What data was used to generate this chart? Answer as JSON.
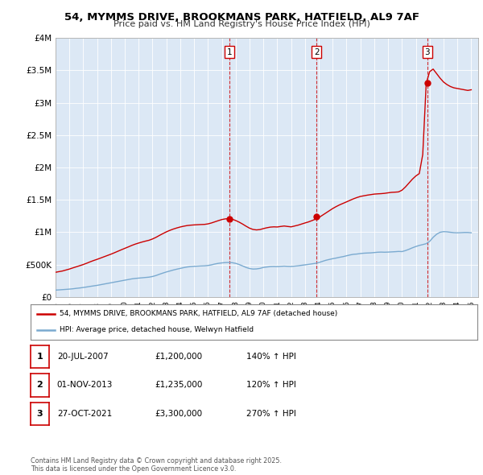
{
  "title": "54, MYMMS DRIVE, BROOKMANS PARK, HATFIELD, AL9 7AF",
  "subtitle": "Price paid vs. HM Land Registry's House Price Index (HPI)",
  "ylim": [
    0,
    4000000
  ],
  "xlim_start": 1995.0,
  "xlim_end": 2025.5,
  "yticks": [
    0,
    500000,
    1000000,
    1500000,
    2000000,
    2500000,
    3000000,
    3500000,
    4000000
  ],
  "ytick_labels": [
    "£0",
    "£500K",
    "£1M",
    "£1.5M",
    "£2M",
    "£2.5M",
    "£3M",
    "£3.5M",
    "£4M"
  ],
  "xticks": [
    1995,
    1996,
    1997,
    1998,
    1999,
    2000,
    2001,
    2002,
    2003,
    2004,
    2005,
    2006,
    2007,
    2008,
    2009,
    2010,
    2011,
    2012,
    2013,
    2014,
    2015,
    2016,
    2017,
    2018,
    2019,
    2020,
    2021,
    2022,
    2023,
    2024,
    2025
  ],
  "sale_dates": [
    2007.55,
    2013.84,
    2021.82
  ],
  "sale_prices": [
    1200000,
    1235000,
    3300000
  ],
  "sale_labels": [
    "1",
    "2",
    "3"
  ],
  "hpi_color": "#7aaad0",
  "price_color": "#cc0000",
  "legend_label_price": "54, MYMMS DRIVE, BROOKMANS PARK, HATFIELD, AL9 7AF (detached house)",
  "legend_label_hpi": "HPI: Average price, detached house, Welwyn Hatfield",
  "table_data": [
    [
      "1",
      "20-JUL-2007",
      "£1,200,000",
      "140% ↑ HPI"
    ],
    [
      "2",
      "01-NOV-2013",
      "£1,235,000",
      "120% ↑ HPI"
    ],
    [
      "3",
      "27-OCT-2021",
      "£3,300,000",
      "270% ↑ HPI"
    ]
  ],
  "footer": "Contains HM Land Registry data © Crown copyright and database right 2025.\nThis data is licensed under the Open Government Licence v3.0.",
  "hpi_data_x": [
    1995.0,
    1995.25,
    1995.5,
    1995.75,
    1996.0,
    1996.25,
    1996.5,
    1996.75,
    1997.0,
    1997.25,
    1997.5,
    1997.75,
    1998.0,
    1998.25,
    1998.5,
    1998.75,
    1999.0,
    1999.25,
    1999.5,
    1999.75,
    2000.0,
    2000.25,
    2000.5,
    2000.75,
    2001.0,
    2001.25,
    2001.5,
    2001.75,
    2002.0,
    2002.25,
    2002.5,
    2002.75,
    2003.0,
    2003.25,
    2003.5,
    2003.75,
    2004.0,
    2004.25,
    2004.5,
    2004.75,
    2005.0,
    2005.25,
    2005.5,
    2005.75,
    2006.0,
    2006.25,
    2006.5,
    2006.75,
    2007.0,
    2007.25,
    2007.5,
    2007.75,
    2008.0,
    2008.25,
    2008.5,
    2008.75,
    2009.0,
    2009.25,
    2009.5,
    2009.75,
    2010.0,
    2010.25,
    2010.5,
    2010.75,
    2011.0,
    2011.25,
    2011.5,
    2011.75,
    2012.0,
    2012.25,
    2012.5,
    2012.75,
    2013.0,
    2013.25,
    2013.5,
    2013.75,
    2014.0,
    2014.25,
    2014.5,
    2014.75,
    2015.0,
    2015.25,
    2015.5,
    2015.75,
    2016.0,
    2016.25,
    2016.5,
    2016.75,
    2017.0,
    2017.25,
    2017.5,
    2017.75,
    2018.0,
    2018.25,
    2018.5,
    2018.75,
    2019.0,
    2019.25,
    2019.5,
    2019.75,
    2020.0,
    2020.25,
    2020.5,
    2020.75,
    2021.0,
    2021.25,
    2021.5,
    2021.75,
    2022.0,
    2022.25,
    2022.5,
    2022.75,
    2023.0,
    2023.25,
    2023.5,
    2023.75,
    2024.0,
    2024.25,
    2024.5,
    2024.75,
    2025.0
  ],
  "hpi_data_y": [
    105000,
    108000,
    112000,
    116000,
    120000,
    125000,
    132000,
    138000,
    145000,
    153000,
    162000,
    170000,
    178000,
    188000,
    198000,
    208000,
    218000,
    228000,
    238000,
    248000,
    258000,
    268000,
    278000,
    285000,
    290000,
    295000,
    300000,
    305000,
    315000,
    330000,
    350000,
    368000,
    385000,
    400000,
    415000,
    428000,
    440000,
    452000,
    462000,
    468000,
    472000,
    475000,
    478000,
    480000,
    485000,
    495000,
    508000,
    518000,
    525000,
    530000,
    532000,
    528000,
    518000,
    500000,
    478000,
    455000,
    438000,
    430000,
    432000,
    440000,
    455000,
    462000,
    468000,
    470000,
    468000,
    472000,
    475000,
    472000,
    470000,
    475000,
    480000,
    488000,
    495000,
    502000,
    510000,
    518000,
    530000,
    548000,
    565000,
    578000,
    590000,
    600000,
    612000,
    622000,
    635000,
    648000,
    658000,
    662000,
    670000,
    675000,
    678000,
    680000,
    685000,
    690000,
    692000,
    690000,
    692000,
    695000,
    698000,
    702000,
    700000,
    715000,
    735000,
    758000,
    778000,
    795000,
    808000,
    822000,
    858000,
    920000,
    968000,
    998000,
    1008000,
    1005000,
    998000,
    992000,
    990000,
    992000,
    995000,
    995000,
    990000
  ],
  "price_data_x": [
    1995.0,
    1995.25,
    1995.5,
    1995.75,
    1996.0,
    1996.25,
    1996.5,
    1996.75,
    1997.0,
    1997.25,
    1997.5,
    1997.75,
    1998.0,
    1998.25,
    1998.5,
    1998.75,
    1999.0,
    1999.25,
    1999.5,
    1999.75,
    2000.0,
    2000.25,
    2000.5,
    2000.75,
    2001.0,
    2001.25,
    2001.5,
    2001.75,
    2002.0,
    2002.25,
    2002.5,
    2002.75,
    2003.0,
    2003.25,
    2003.5,
    2003.75,
    2004.0,
    2004.25,
    2004.5,
    2004.75,
    2005.0,
    2005.25,
    2005.5,
    2005.75,
    2006.0,
    2006.25,
    2006.5,
    2006.75,
    2007.0,
    2007.25,
    2007.5,
    2007.75,
    2008.0,
    2008.25,
    2008.5,
    2008.75,
    2009.0,
    2009.25,
    2009.5,
    2009.75,
    2010.0,
    2010.25,
    2010.5,
    2010.75,
    2011.0,
    2011.25,
    2011.5,
    2011.75,
    2012.0,
    2012.25,
    2012.5,
    2012.75,
    2013.0,
    2013.25,
    2013.5,
    2013.75,
    2014.0,
    2014.25,
    2014.5,
    2014.75,
    2015.0,
    2015.25,
    2015.5,
    2015.75,
    2016.0,
    2016.25,
    2016.5,
    2016.75,
    2017.0,
    2017.25,
    2017.5,
    2017.75,
    2018.0,
    2018.25,
    2018.5,
    2018.75,
    2019.0,
    2019.25,
    2019.5,
    2019.75,
    2020.0,
    2020.25,
    2020.5,
    2020.75,
    2021.0,
    2021.25,
    2021.5,
    2021.75,
    2022.0,
    2022.25,
    2022.5,
    2022.75,
    2023.0,
    2023.25,
    2023.5,
    2023.75,
    2024.0,
    2024.25,
    2024.5,
    2024.75,
    2025.0
  ],
  "price_data_y": [
    380000,
    390000,
    400000,
    415000,
    430000,
    448000,
    465000,
    482000,
    500000,
    520000,
    542000,
    562000,
    580000,
    600000,
    620000,
    640000,
    660000,
    682000,
    705000,
    728000,
    750000,
    772000,
    795000,
    815000,
    832000,
    848000,
    862000,
    875000,
    895000,
    920000,
    950000,
    978000,
    1005000,
    1028000,
    1048000,
    1065000,
    1080000,
    1092000,
    1102000,
    1108000,
    1112000,
    1115000,
    1118000,
    1120000,
    1128000,
    1142000,
    1160000,
    1178000,
    1195000,
    1205000,
    1210000,
    1200000,
    1180000,
    1155000,
    1125000,
    1092000,
    1062000,
    1042000,
    1035000,
    1040000,
    1055000,
    1068000,
    1078000,
    1082000,
    1080000,
    1088000,
    1095000,
    1088000,
    1082000,
    1095000,
    1108000,
    1125000,
    1142000,
    1158000,
    1178000,
    1200000,
    1225000,
    1260000,
    1295000,
    1330000,
    1365000,
    1395000,
    1422000,
    1445000,
    1468000,
    1492000,
    1515000,
    1535000,
    1552000,
    1562000,
    1572000,
    1580000,
    1588000,
    1592000,
    1595000,
    1600000,
    1608000,
    1615000,
    1618000,
    1622000,
    1648000,
    1698000,
    1758000,
    1818000,
    1868000,
    1905000,
    2200000,
    3300000,
    3480000,
    3520000,
    3450000,
    3380000,
    3320000,
    3280000,
    3250000,
    3230000,
    3220000,
    3210000,
    3200000,
    3190000,
    3200000
  ]
}
